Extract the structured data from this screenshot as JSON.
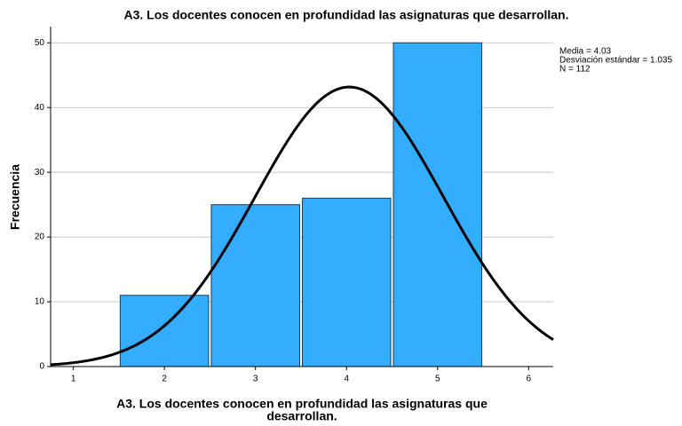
{
  "chart_data": {
    "type": "histogram",
    "title": "A3. Los docentes conocen en profundidad las asignaturas que desarrollan.",
    "x_label": [
      "A3. Los docentes conocen en profundidad las asignaturas que",
      "desarrollan."
    ],
    "y_label": "Frecuencia",
    "bins": [
      1.5,
      2.5,
      3.5,
      4.5,
      5.5
    ],
    "values": [
      11,
      25,
      26,
      50
    ],
    "color": "#33adff",
    "edge_color": "#1f3b57",
    "xlim": [
      0.75,
      6.27
    ],
    "xticks": [
      1,
      2,
      3,
      4,
      5,
      6
    ],
    "ylim": [
      0,
      52.5
    ],
    "yticks": [
      0,
      10,
      20,
      30,
      40,
      50
    ],
    "grid": true,
    "normal_curve": {
      "mean": 4.03,
      "sd": 1.035,
      "n": 112,
      "color": "#000000"
    },
    "annotations": [
      "Media = 4.03",
      "Desviación estándar = 1.035",
      "N = 112"
    ]
  }
}
